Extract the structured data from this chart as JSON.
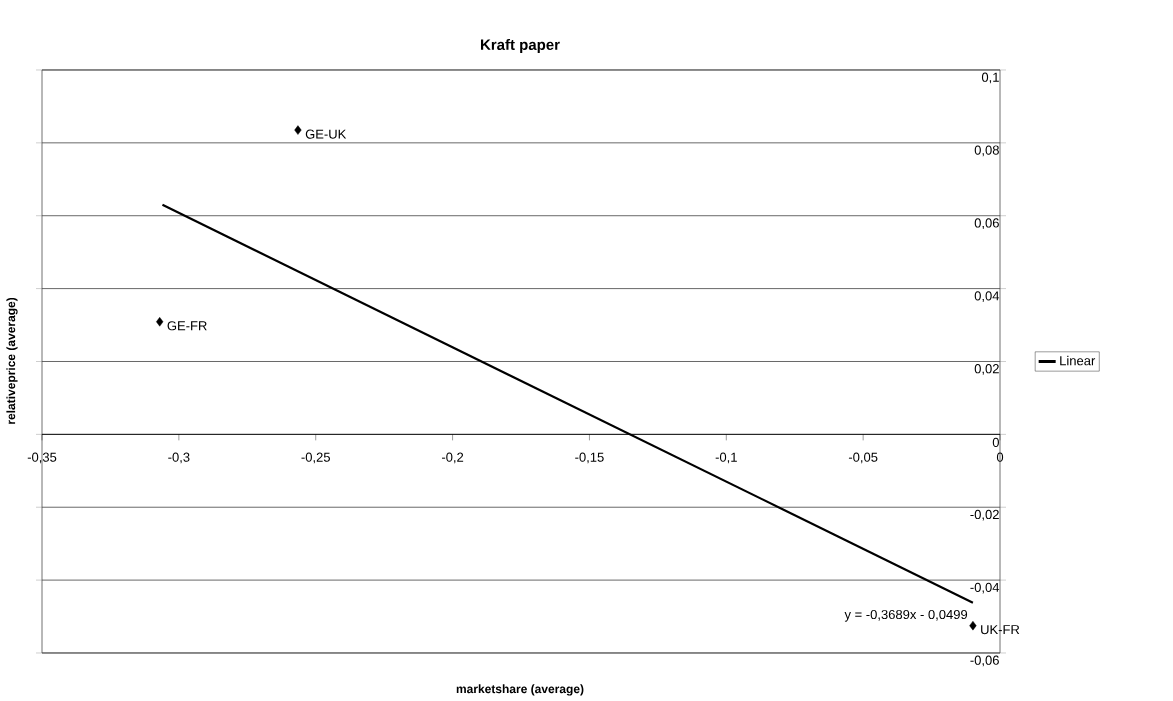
{
  "chart_data": {
    "type": "scatter",
    "title": "Kraft paper",
    "xlabel": "marketshare (average)",
    "ylabel": "relativeprice (average)",
    "xlim": [
      -0.35,
      0
    ],
    "ylim": [
      -0.06,
      0.1
    ],
    "xticks": [
      {
        "value": -0.35,
        "label": "-0,35"
      },
      {
        "value": -0.3,
        "label": "-0,3"
      },
      {
        "value": -0.25,
        "label": "-0,25"
      },
      {
        "value": -0.2,
        "label": "-0,2"
      },
      {
        "value": -0.15,
        "label": "-0,15"
      },
      {
        "value": -0.1,
        "label": "-0,1"
      },
      {
        "value": -0.05,
        "label": "-0,05"
      },
      0
    ],
    "yticks": [
      {
        "value": -0.06,
        "label": "-0,06"
      },
      {
        "value": -0.04,
        "label": "-0,04"
      },
      {
        "value": -0.02,
        "label": "-0,02"
      },
      0,
      {
        "value": 0.02,
        "label": "0,02"
      },
      {
        "value": 0.04,
        "label": "0,04"
      },
      {
        "value": 0.06,
        "label": "0,06"
      },
      {
        "value": 0.08,
        "label": "0,08"
      },
      {
        "value": 0.1,
        "label": "0,1"
      }
    ],
    "grid": "y",
    "legend": "right",
    "series": [
      {
        "color": "#000000",
        "marker": "diamond",
        "x": [
          -0.2565,
          -0.307,
          -0.0099
        ],
        "values": [
          0.0835,
          0.0309,
          -0.0525
        ]
      },
      {
        "type": "line",
        "name": "Linear",
        "color": "#000000",
        "marker": "none",
        "line_style": "solid",
        "x": [
          -0.306,
          -0.0099
        ],
        "values": [
          0.063,
          -0.0462
        ]
      }
    ],
    "annotations": [
      {
        "text": "GE-UK",
        "x": -0.2565,
        "y": 0.0835
      },
      {
        "text": "GE-FR",
        "x": -0.307,
        "y": 0.0309
      },
      {
        "text": "UK-FR",
        "x": -0.0099,
        "y": -0.0525
      },
      {
        "text": "y = -0,3689x - 0,0499",
        "x": -0.0099,
        "y": -0.0462
      }
    ]
  }
}
